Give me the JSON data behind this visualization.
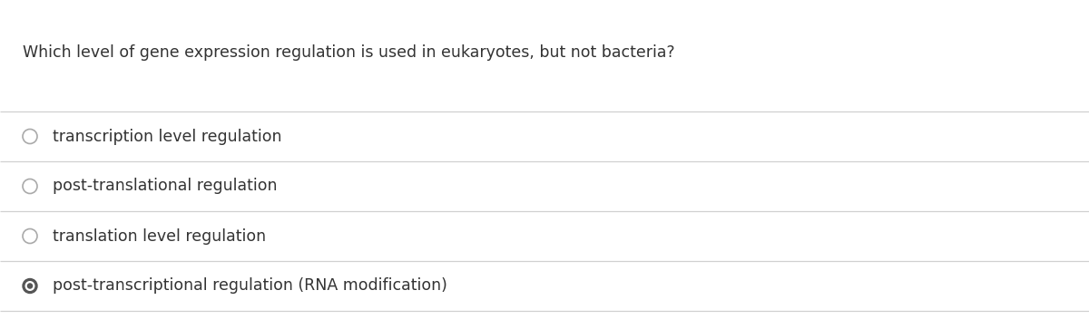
{
  "question": "Which level of gene expression regulation is used in eukaryotes, but not bacteria?",
  "options": [
    "transcription level regulation",
    "post-translational regulation",
    "translation level regulation",
    "post-transcriptional regulation (RNA modification)"
  ],
  "selected_index": 3,
  "background_color": "#ffffff",
  "text_color": "#333333",
  "line_color": "#d0d0d0",
  "radio_edge_color": "#aaaaaa",
  "radio_selected_color": "#555555",
  "question_fontsize": 12.5,
  "option_fontsize": 12.5,
  "fig_width": 12.0,
  "fig_height": 3.63,
  "dpi": 100
}
